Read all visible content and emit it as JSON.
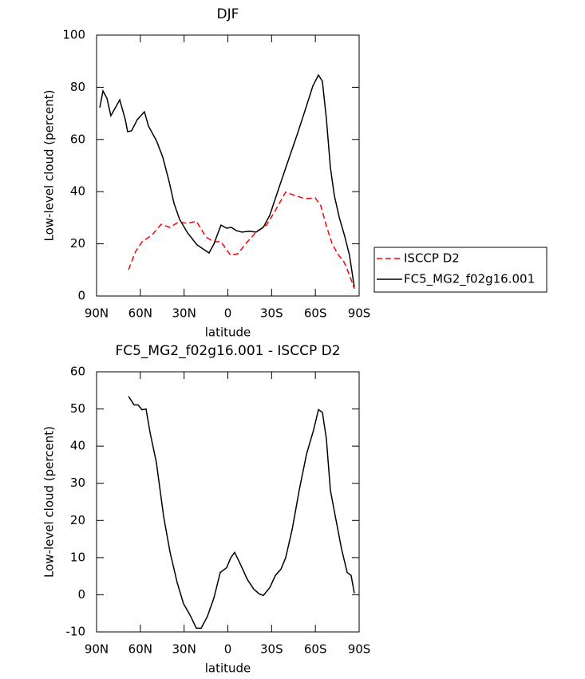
{
  "chart_data": [
    {
      "type": "line",
      "title": "DJF",
      "xlabel": "latitude",
      "ylabel": "Low-level cloud (percent)",
      "xlim": [
        90,
        -90
      ],
      "ylim": [
        0,
        100
      ],
      "xticks": [
        {
          "value": 90,
          "label": "90N"
        },
        {
          "value": 60,
          "label": "60N"
        },
        {
          "value": 30,
          "label": "30N"
        },
        0,
        {
          "value": -30,
          "label": "30S"
        },
        {
          "value": -60,
          "label": "60S"
        },
        {
          "value": -90,
          "label": "90S"
        }
      ],
      "yticks": [
        0,
        20,
        40,
        60,
        80,
        100
      ],
      "legend": "outside-right",
      "series": [
        {
          "name": "ISCCP D2",
          "color": "#ff0000",
          "linestyle": "dashed",
          "x": [
            68.1,
            63.2,
            58.8,
            52.3,
            45.7,
            39.7,
            33.7,
            27.6,
            21.6,
            15,
            9.6,
            4.7,
            -1.9,
            -6.8,
            -13.4,
            -19.9,
            -26.5,
            -33.1,
            -39.6,
            -46.2,
            -52.8,
            -59.9,
            -63.7,
            -67.5,
            -71.4,
            -75.2,
            -79.6,
            -83.4,
            -86.7
          ],
          "values": [
            10.1,
            17.1,
            20.8,
            23.2,
            27.5,
            26.3,
            28.4,
            27.8,
            28.7,
            22.6,
            20.8,
            20.8,
            15.6,
            16.2,
            20.8,
            24.8,
            27.2,
            33.3,
            39.8,
            38.5,
            37.3,
            37.6,
            34.6,
            26.9,
            20.2,
            16.2,
            13.1,
            8,
            2.8
          ]
        },
        {
          "name": "FC5_MG2_f02g16.001",
          "color": "#000000",
          "linestyle": "solid",
          "x": [
            87.8,
            85.6,
            82.9,
            80.2,
            78,
            74.1,
            70.3,
            68.7,
            66,
            62.1,
            57.2,
            54.4,
            49,
            44.6,
            40.2,
            36.9,
            33.1,
            27.6,
            21.1,
            12.9,
            9.6,
            4.7,
            0.8,
            -2.5,
            -5.7,
            -9.6,
            -14.5,
            -19.4,
            -24.3,
            -28.7,
            -34.2,
            -40.7,
            -47.3,
            -53.9,
            -58.2,
            -62.1,
            -64.8,
            -67.5,
            -70.3,
            -73,
            -76.3,
            -80.1,
            -83.4,
            -86.7
          ],
          "values": [
            72.2,
            78.6,
            75.8,
            69.1,
            71.3,
            75.2,
            67.6,
            63,
            63.3,
            67.6,
            70.6,
            65.1,
            59.6,
            53.2,
            43.7,
            35.5,
            29.4,
            24.2,
            19.6,
            16.5,
            19.9,
            27.2,
            26,
            26.3,
            25.1,
            24.5,
            24.8,
            24.5,
            26.3,
            30.9,
            40.1,
            50.8,
            61.5,
            72.8,
            80.4,
            84.7,
            82.3,
            68.2,
            49.2,
            38.5,
            30.3,
            22.9,
            15.6,
            3.4
          ]
        }
      ]
    },
    {
      "type": "line",
      "title": "FC5_MG2_f02g16.001 - ISCCP D2",
      "xlabel": "latitude",
      "ylabel": "Low-level cloud (percent)",
      "xlim": [
        90,
        -90
      ],
      "ylim": [
        -10,
        60
      ],
      "xticks": [
        {
          "value": 90,
          "label": "90N"
        },
        {
          "value": 60,
          "label": "60N"
        },
        {
          "value": 30,
          "label": "30N"
        },
        0,
        {
          "value": -30,
          "label": "30S"
        },
        {
          "value": -60,
          "label": "60S"
        },
        {
          "value": -90,
          "label": "90S"
        }
      ],
      "yticks": [
        -10,
        0,
        10,
        20,
        30,
        40,
        50,
        60
      ],
      "series": [
        {
          "color": "#000000",
          "linestyle": "solid",
          "x": [
            68.1,
            64.3,
            61.6,
            58.8,
            56.1,
            53.3,
            49,
            44,
            39.7,
            34.7,
            30.4,
            26,
            21.6,
            18.3,
            14,
            9.6,
            5.2,
            0.8,
            -1.9,
            -4.6,
            -7.9,
            -13.4,
            -17.8,
            -21.6,
            -24.3,
            -28.7,
            -32.6,
            -36.4,
            -39.6,
            -44.1,
            -49,
            -53.9,
            -58.8,
            -62.1,
            -64.8,
            -67.5,
            -70.3,
            -74.1,
            -77.9,
            -81.8,
            -84.5,
            -86.7
          ],
          "values": [
            53.4,
            51.1,
            51.1,
            49.8,
            50,
            43.6,
            35.6,
            21,
            11.6,
            3.2,
            -2.4,
            -5.4,
            -9,
            -9,
            -5.8,
            -0.9,
            6,
            7.3,
            9.9,
            11.4,
            8.8,
            4.1,
            1.5,
            0.2,
            -0.2,
            1.9,
            5.2,
            6.9,
            9.9,
            17.6,
            28.3,
            37.8,
            44.4,
            49.8,
            49.1,
            42.1,
            28.1,
            20.2,
            12.4,
            6,
            5.2,
            0.4
          ]
        }
      ]
    }
  ]
}
